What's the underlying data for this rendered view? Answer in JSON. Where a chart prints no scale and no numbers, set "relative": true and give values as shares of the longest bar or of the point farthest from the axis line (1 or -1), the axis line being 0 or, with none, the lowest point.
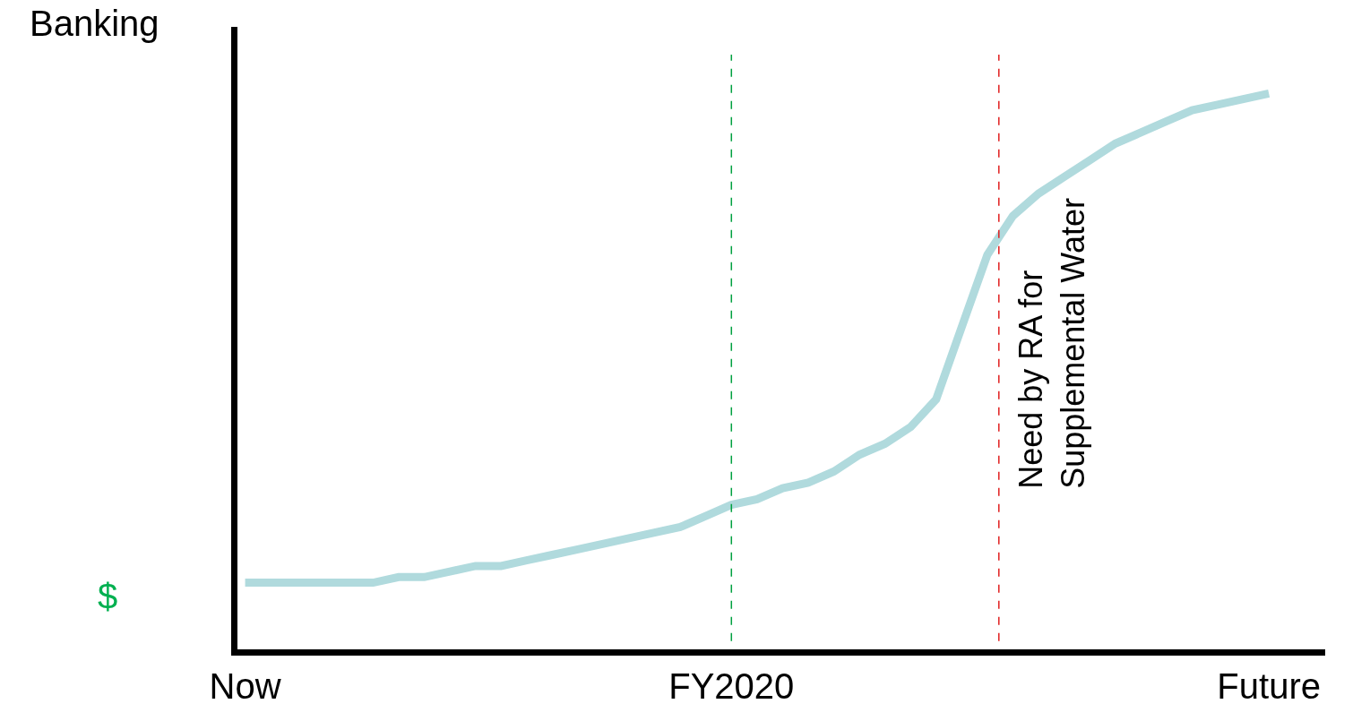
{
  "chart_data": {
    "type": "line",
    "relative": true,
    "ylabel": "Banking",
    "categories": [
      "Now",
      null,
      null,
      null,
      null,
      null,
      null,
      null,
      null,
      null,
      null,
      null,
      null,
      null,
      null,
      null,
      null,
      null,
      null,
      "FY2020",
      null,
      null,
      null,
      null,
      null,
      null,
      null,
      null,
      null,
      null,
      null,
      null,
      null,
      null,
      null,
      null,
      null,
      null,
      null,
      null,
      "Future"
    ],
    "series": [
      {
        "color": "#b0dadd",
        "values": [
          0.12,
          0.12,
          0.12,
          0.12,
          0.12,
          0.12,
          0.13,
          0.13,
          0.14,
          0.15,
          0.15,
          0.16,
          0.17,
          0.18,
          0.19,
          0.2,
          0.21,
          0.22,
          0.24,
          0.26,
          0.27,
          0.29,
          0.3,
          0.32,
          0.35,
          0.37,
          0.4,
          0.45,
          0.58,
          0.71,
          0.78,
          0.82,
          0.85,
          0.88,
          0.91,
          0.93,
          0.95,
          0.97,
          0.98,
          0.99,
          1
        ]
      }
    ],
    "ref_lines": [
      {
        "axis": "x",
        "value": "FY2020",
        "color": "#00a040",
        "line_style": "dashed"
      },
      {
        "axis": "x",
        "color": "#e02020",
        "line_style": "dashed",
        "label": "Need by RA for\nSupplemental Water"
      }
    ],
    "annotations": [
      "$"
    ],
    "legend": false,
    "marker": "none"
  }
}
